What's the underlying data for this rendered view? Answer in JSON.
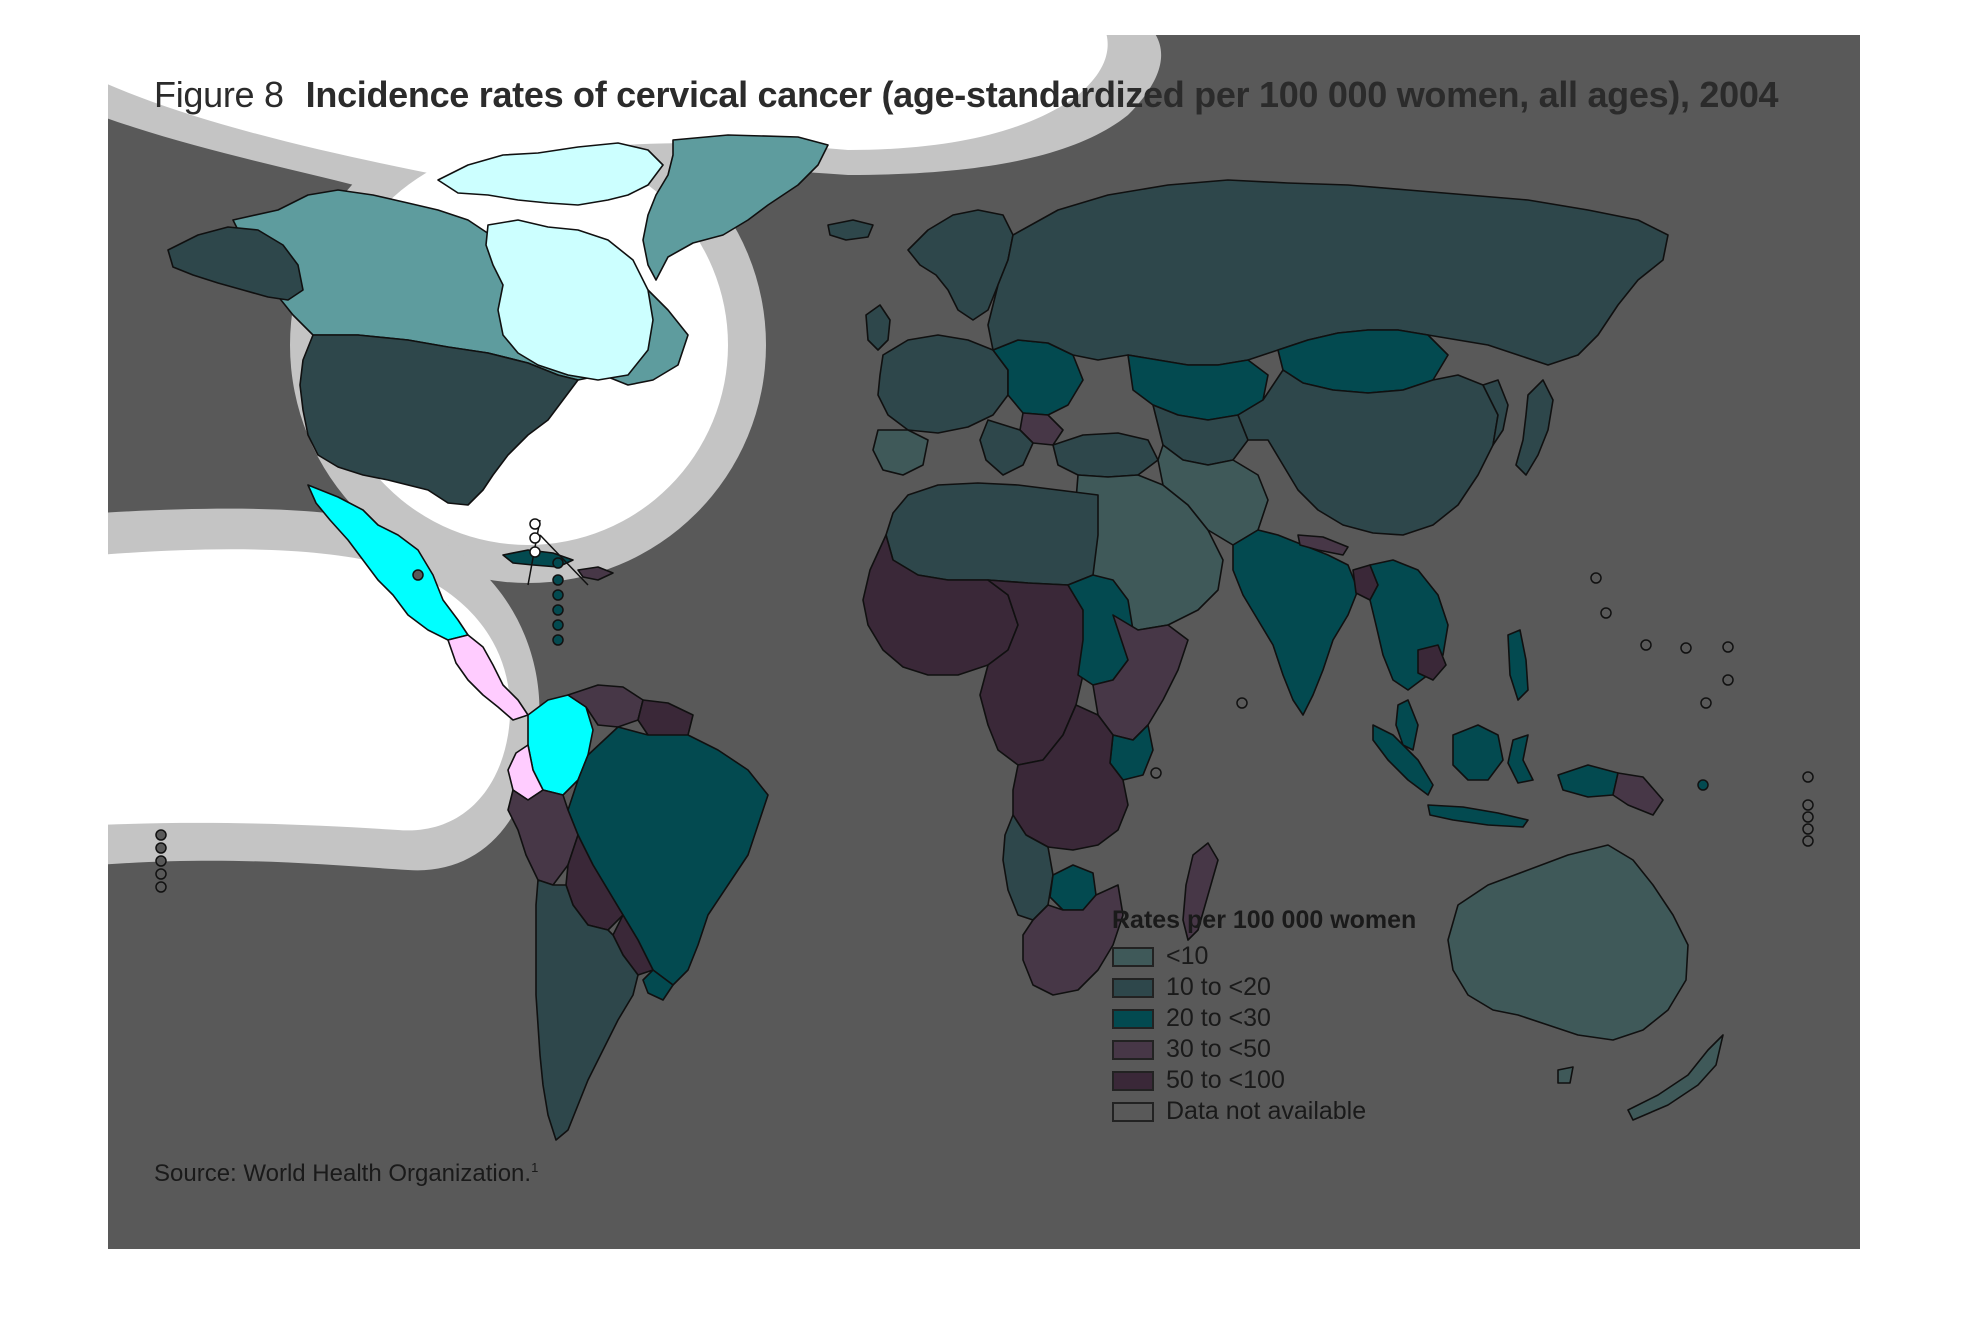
{
  "figure": {
    "label": "Figure 8",
    "title": "Incidence rates of cervical cancer (age-standardized per 100 000 women, all ages), 2004",
    "source": "Source: World Health Organization.",
    "source_footnote": "1"
  },
  "legend": {
    "title": "Rates per 100 000 women",
    "items": [
      {
        "label": "<10",
        "color": "#3f5959"
      },
      {
        "label": "10 to <20",
        "color": "#2e474b"
      },
      {
        "label": "20 to <30",
        "color": "#034a50"
      },
      {
        "label": "30 to <50",
        "color": "#473747"
      },
      {
        "label": "50 to <100",
        "color": "#3a2838"
      },
      {
        "label": "Data not available",
        "color": "#595959"
      }
    ]
  },
  "colors": {
    "panel": "#595959",
    "highlight_white": "#ffffff",
    "highlight_ring": "#c4c4c4",
    "cyan_bright": "#00ffff",
    "cyan_pale": "#ccffff",
    "pink_pale": "#ffccff"
  },
  "map_regions": [
    {
      "region": "Canada",
      "category": "10 to <20"
    },
    {
      "region": "Greenland",
      "category": "10 to <20"
    },
    {
      "region": "United States of America",
      "category": "10 to <20"
    },
    {
      "region": "Mexico",
      "category": "20 to <30"
    },
    {
      "region": "Central America",
      "category": "30 to <50"
    },
    {
      "region": "Colombia",
      "category": "20 to <30"
    },
    {
      "region": "Venezuela",
      "category": "30 to <50"
    },
    {
      "region": "Guyana / Suriname",
      "category": "50 to <100"
    },
    {
      "region": "Ecuador",
      "category": "30 to <50"
    },
    {
      "region": "Peru",
      "category": "30 to <50"
    },
    {
      "region": "Bolivia",
      "category": "50 to <100"
    },
    {
      "region": "Brazil",
      "category": "20 to <30"
    },
    {
      "region": "Paraguay",
      "category": "50 to <100"
    },
    {
      "region": "Argentina / Chile",
      "category": "10 to <20"
    },
    {
      "region": "Uruguay",
      "category": "20 to <30"
    },
    {
      "region": "Europe",
      "category": "10 to <20"
    },
    {
      "region": "Eastern Europe",
      "category": "20 to <30"
    },
    {
      "region": "Russian Federation",
      "category": "10 to <20"
    },
    {
      "region": "Kazakhstan",
      "category": "20 to <30"
    },
    {
      "region": "Mongolia",
      "category": "20 to <30"
    },
    {
      "region": "China",
      "category": "10 to <20"
    },
    {
      "region": "Middle East",
      "category": "<10"
    },
    {
      "region": "North Africa",
      "category": "10 to <20"
    },
    {
      "region": "West Africa",
      "category": "50 to <100"
    },
    {
      "region": "Central Africa",
      "category": "50 to <100"
    },
    {
      "region": "Sudan",
      "category": "20 to <30"
    },
    {
      "region": "East Africa",
      "category": "30 to <50"
    },
    {
      "region": "Southern Africa",
      "category": "30 to <50"
    },
    {
      "region": "Madagascar",
      "category": "30 to <50"
    },
    {
      "region": "India",
      "category": "20 to <30"
    },
    {
      "region": "Bangladesh",
      "category": "30 to <50"
    },
    {
      "region": "Southeast Asia",
      "category": "20 to <30"
    },
    {
      "region": "Indonesia",
      "category": "20 to <30"
    },
    {
      "region": "Papua New Guinea",
      "category": "30 to <50"
    },
    {
      "region": "Japan",
      "category": "10 to <20"
    },
    {
      "region": "Australia",
      "category": "10 to <20"
    },
    {
      "region": "New Zealand",
      "category": "10 to <20"
    }
  ]
}
